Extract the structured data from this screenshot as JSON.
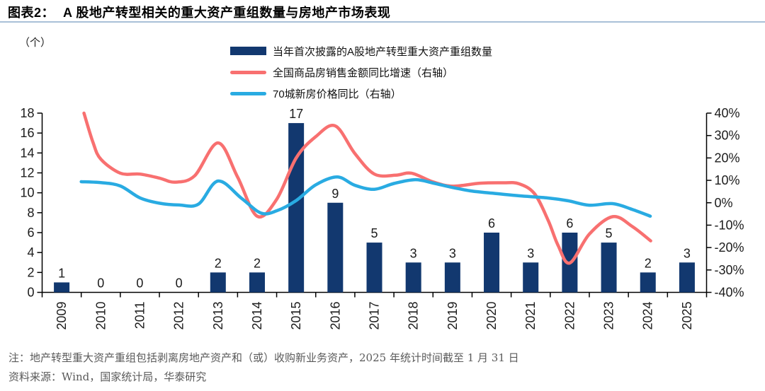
{
  "header": {
    "figure_label": "图表2：",
    "title": "A 股地产转型相关的重大资产重组数量与房地产市场表现"
  },
  "axis_unit": "（个）",
  "legend": [
    {
      "label": "当年首次披露的A股地产转型重大资产重组数量",
      "type": "bar",
      "color": "#12386f"
    },
    {
      "label": "全国商品房销售金额同比增速（右轴）",
      "type": "line",
      "color": "#f87070"
    },
    {
      "label": "70城新房价格同比（右轴）",
      "type": "line",
      "color": "#29abe2"
    }
  ],
  "chart_data": {
    "type": "bar+line",
    "title": "A 股地产转型相关的重大资产重组数量与房地产市场表现",
    "categories": [
      "2009",
      "2010",
      "2011",
      "2012",
      "2013",
      "2014",
      "2015",
      "2016",
      "2017",
      "2018",
      "2019",
      "2020",
      "2021",
      "2022",
      "2023",
      "2024",
      "2025"
    ],
    "left_axis": {
      "title": "（个）",
      "min": 0,
      "max": 18,
      "ticks": [
        0,
        2,
        4,
        6,
        8,
        10,
        12,
        14,
        16,
        18
      ]
    },
    "right_axis": {
      "min": -40,
      "max": 40,
      "tick_values": [
        40,
        30,
        20,
        10,
        0,
        -10,
        -20,
        -30,
        -40
      ],
      "ticks": [
        "40%",
        "30%",
        "20%",
        "10%",
        "0%",
        "-10%",
        "-20%",
        "-30%",
        "-40%"
      ]
    },
    "grid": false,
    "legend_position": "top",
    "series": [
      {
        "name": "当年首次披露的A股地产转型重大资产重组数量",
        "type": "bar",
        "axis": "left",
        "color": "#12386f",
        "values": [
          1,
          0,
          0,
          0,
          2,
          2,
          17,
          9,
          5,
          3,
          3,
          6,
          3,
          6,
          5,
          2,
          3
        ]
      },
      {
        "name": "全国商品房销售金额同比增速（右轴）",
        "type": "line",
        "axis": "right",
        "color": "#f87070",
        "points": [
          [
            0.57,
            40
          ],
          [
            0.8,
            27
          ],
          [
            1.0,
            19.5
          ],
          [
            1.5,
            13.2
          ],
          [
            2.0,
            12.8
          ],
          [
            2.5,
            11.0
          ],
          [
            2.9,
            9.2
          ],
          [
            3.4,
            12.0
          ],
          [
            4.0,
            26.7
          ],
          [
            4.5,
            11.5
          ],
          [
            5.0,
            -6.0
          ],
          [
            5.5,
            1.5
          ],
          [
            6.0,
            20.0
          ],
          [
            6.5,
            29.5
          ],
          [
            7.0,
            34.3
          ],
          [
            7.5,
            22.0
          ],
          [
            8.0,
            12.8
          ],
          [
            8.55,
            12.3
          ],
          [
            8.95,
            13.2
          ],
          [
            9.5,
            9.3
          ],
          [
            10.0,
            7.4
          ],
          [
            10.7,
            8.7
          ],
          [
            11.3,
            8.9
          ],
          [
            11.7,
            8.5
          ],
          [
            12.1,
            4.0
          ],
          [
            12.45,
            -8.0
          ],
          [
            12.7,
            -19.0
          ],
          [
            13.0,
            -26.9
          ],
          [
            13.5,
            -14.0
          ],
          [
            14.1,
            -6.2
          ],
          [
            14.6,
            -10.6
          ],
          [
            15.07,
            -17.0
          ]
        ]
      },
      {
        "name": "70城新房价格同比（右轴）",
        "type": "line",
        "axis": "right",
        "color": "#29abe2",
        "points": [
          [
            0.5,
            9.4
          ],
          [
            1.0,
            9.0
          ],
          [
            1.5,
            7.5
          ],
          [
            2.0,
            2.2
          ],
          [
            2.5,
            -0.2
          ],
          [
            3.0,
            -1.0
          ],
          [
            3.5,
            -0.6
          ],
          [
            4.0,
            9.7
          ],
          [
            4.6,
            2.0
          ],
          [
            5.1,
            -4.6
          ],
          [
            5.5,
            -3.6
          ],
          [
            6.0,
            1.0
          ],
          [
            6.5,
            8.0
          ],
          [
            7.05,
            11.5
          ],
          [
            7.5,
            7.8
          ],
          [
            8.0,
            6.0
          ],
          [
            8.5,
            8.6
          ],
          [
            9.05,
            10.3
          ],
          [
            9.5,
            8.8
          ],
          [
            10.0,
            6.8
          ],
          [
            10.5,
            5.2
          ],
          [
            11.0,
            4.3
          ],
          [
            11.7,
            3.1
          ],
          [
            12.4,
            2.2
          ],
          [
            12.95,
            0.9
          ],
          [
            13.5,
            -1.1
          ],
          [
            14.1,
            -0.4
          ],
          [
            14.6,
            -3.0
          ],
          [
            15.06,
            -6.0
          ]
        ]
      }
    ]
  },
  "notes": {
    "note": "注：地产转型重大资产重组包括剥离房地产资产和（或）收购新业务资产，2025 年统计时间截至 1 月 31 日",
    "source": "资料来源：Wind，国家统计局，华泰研究"
  }
}
